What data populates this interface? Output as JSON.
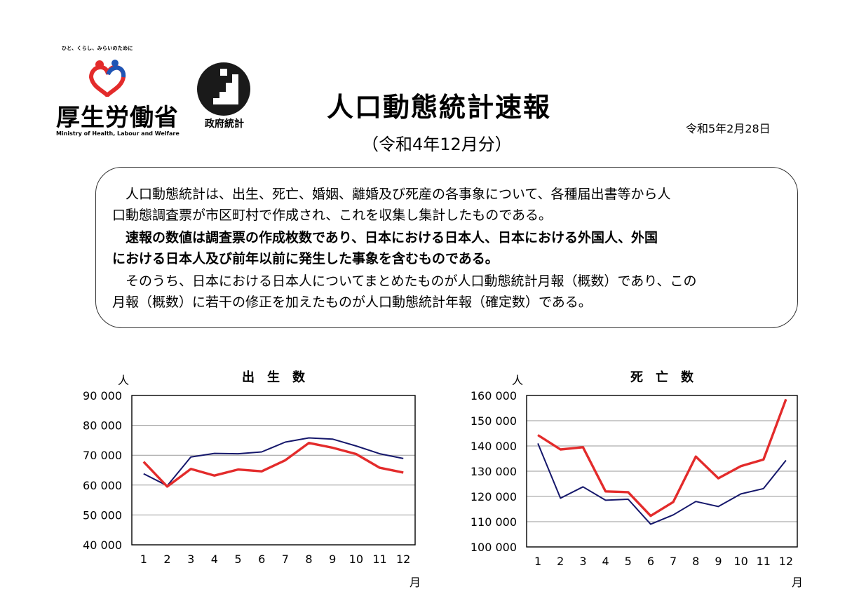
{
  "header": {
    "ministry_tagline": "ひと、くらし、みらいのために",
    "ministry_name": "厚生労働省",
    "ministry_name_en": "Ministry of Health, Labour and Welfare",
    "gov_stat_label": "政府統計",
    "title": "人口動態統計速報",
    "subtitle": "（令和4年12月分）",
    "date": "令和5年2月28日"
  },
  "notice": {
    "p1_line1": "　人口動態統計は、出生、死亡、婚姻、離婚及び死産の各事象について、各種届出書等から人",
    "p1_line2": "口動態調査票が市区町村で作成され、これを収集し集計したものである。",
    "p2_line1": "　速報の数値は調査票の作成枚数であり、日本における日本人、日本における外国人、外国",
    "p2_line2": "における日本人及び前年以前に発生した事象を含むものである。",
    "p3_line1": "　そのうち、日本における日本人についてまとめたものが人口動態統計月報（概数）であり、この",
    "p3_line2": "月報（概数）に若干の修正を加えたものが人口動態統計年報（確定数）である。"
  },
  "colors": {
    "current_year": "#e32b2b",
    "previous_year": "#15176b",
    "grid": "#9a9a9a"
  },
  "chart_data": [
    {
      "type": "line",
      "title": "出　生　数",
      "ylabel": "人",
      "xlabel": "月",
      "categories": [
        "1",
        "2",
        "3",
        "4",
        "5",
        "6",
        "7",
        "8",
        "9",
        "10",
        "11",
        "12"
      ],
      "ylim": [
        40000,
        90000
      ],
      "yticks": [
        90000,
        80000,
        70000,
        60000,
        50000,
        40000
      ],
      "ytick_labels": [
        "90 000",
        "80 000",
        "70 000",
        "60 000",
        "50 000",
        "40 000"
      ],
      "grid": true,
      "series": [
        {
          "color": "#e32b2b",
          "values": [
            67800,
            59500,
            65400,
            63200,
            65200,
            64600,
            68300,
            74100,
            72500,
            70400,
            65800,
            64200
          ]
        },
        {
          "color": "#15176b",
          "values": [
            63800,
            59800,
            69400,
            70600,
            70500,
            71100,
            74400,
            75800,
            75400,
            73100,
            70500,
            68900
          ]
        }
      ]
    },
    {
      "type": "line",
      "title": "死　亡　数",
      "ylabel": "人",
      "xlabel": "月",
      "categories": [
        "1",
        "2",
        "3",
        "4",
        "5",
        "6",
        "7",
        "8",
        "9",
        "10",
        "11",
        "12"
      ],
      "ylim": [
        100000,
        160000
      ],
      "yticks": [
        160000,
        150000,
        140000,
        130000,
        120000,
        110000,
        100000
      ],
      "ytick_labels": [
        "160 000",
        "150 000",
        "140 000",
        "130 000",
        "120 000",
        "110 000",
        "100 000"
      ],
      "grid": true,
      "series": [
        {
          "color": "#e32b2b",
          "values": [
            144300,
            138600,
            139500,
            122000,
            121700,
            112300,
            117800,
            135800,
            127200,
            132000,
            134600,
            158500
          ]
        },
        {
          "color": "#15176b",
          "values": [
            141000,
            119300,
            123800,
            118500,
            118900,
            109000,
            112700,
            118000,
            116000,
            121000,
            123100,
            134300
          ]
        }
      ]
    }
  ]
}
